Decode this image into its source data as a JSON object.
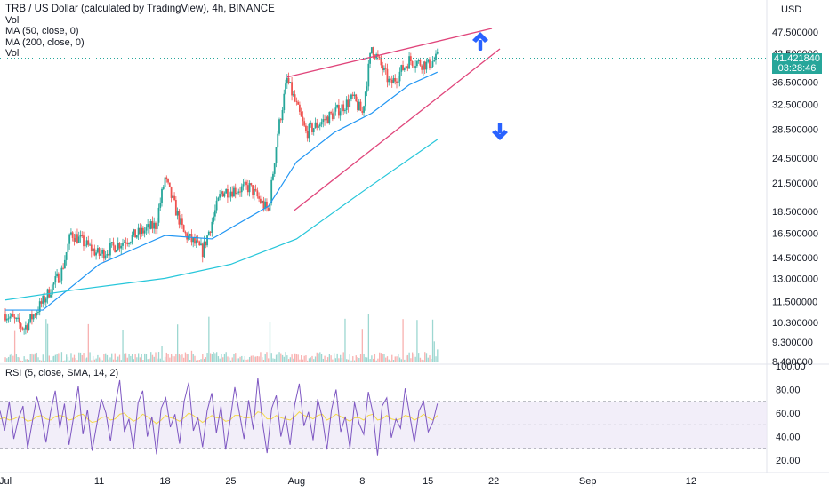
{
  "legend": {
    "title": "TRB / US Dollar (calculated by TradingView), 4h, BINANCE",
    "vol1": "Vol",
    "ma50": "MA (50, close, 0)",
    "ma200": "MA (200, close, 0)",
    "vol2": "Vol"
  },
  "rsi_legend": "RSI (5, close, SMA, 14, 2)",
  "price_scale": {
    "currency": "USD",
    "last_price": "41.421840",
    "countdown": "03:28:46"
  },
  "colors": {
    "up": "#26a69a",
    "down": "#ef5350",
    "ma50": "#2196f3",
    "ma200": "#26c6da",
    "wedge": "#e0457b",
    "arrow": "#2962ff",
    "rsi": "#7e57c2",
    "rsi_sma": "#f5d94a",
    "rsi_band": "#ede7f6"
  },
  "chart_data": [
    {
      "type": "candlestick",
      "title": "TRB / US Dollar (calculated by TradingView), 4h, BINANCE",
      "ylabel": "USD",
      "scale": "log",
      "y_ticks": [
        "47.500000",
        "42.500000",
        "36.500000",
        "32.500000",
        "28.500000",
        "24.500000",
        "21.500000",
        "18.500000",
        "16.500000",
        "14.500000",
        "13.000000",
        "11.500000",
        "10.300000",
        "9.300000",
        "8.400000"
      ],
      "x_ticks": [
        "Jul",
        "11",
        "18",
        "25",
        "Aug",
        "8",
        "15",
        "22",
        "Sep",
        "12"
      ],
      "last_price": 41.42184,
      "key_points": [
        {
          "date": "Jul 1",
          "close": 10.8
        },
        {
          "date": "Jul 3",
          "close": 10.0
        },
        {
          "date": "Jul 5",
          "close": 11.5
        },
        {
          "date": "Jul 7",
          "close": 13.5
        },
        {
          "date": "Jul 8",
          "close": 16.5
        },
        {
          "date": "Jul 11",
          "close": 14.7
        },
        {
          "date": "Jul 14",
          "close": 16.0
        },
        {
          "date": "Jul 17",
          "close": 17.2
        },
        {
          "date": "Jul 18",
          "close": 22.0
        },
        {
          "date": "Jul 20",
          "close": 16.5
        },
        {
          "date": "Jul 22",
          "close": 15.0
        },
        {
          "date": "Jul 24",
          "close": 20.5
        },
        {
          "date": "Jul 27",
          "close": 21.0
        },
        {
          "date": "Jul 29",
          "close": 18.5
        },
        {
          "date": "Jul 30",
          "close": 28.0
        },
        {
          "date": "Jul 31",
          "close": 37.0
        },
        {
          "date": "Aug 2",
          "close": 28.0
        },
        {
          "date": "Aug 5",
          "close": 31.0
        },
        {
          "date": "Aug 7",
          "close": 33.5
        },
        {
          "date": "Aug 8",
          "close": 31.0
        },
        {
          "date": "Aug 9",
          "close": 44.0
        },
        {
          "date": "Aug 11",
          "close": 36.0
        },
        {
          "date": "Aug 13",
          "close": 41.0
        },
        {
          "date": "Aug 15",
          "close": 40.0
        },
        {
          "date": "Aug 16",
          "close": 41.42
        }
      ],
      "ma50": [
        {
          "date": "Jul 1",
          "value": 11.0
        },
        {
          "date": "Jul 5",
          "value": 11.0
        },
        {
          "date": "Jul 11",
          "value": 14.0
        },
        {
          "date": "Jul 18",
          "value": 16.3
        },
        {
          "date": "Jul 23",
          "value": 16.0
        },
        {
          "date": "Jul 29",
          "value": 19.0
        },
        {
          "date": "Aug 1",
          "value": 24.0
        },
        {
          "date": "Aug 5",
          "value": 28.0
        },
        {
          "date": "Aug 9",
          "value": 31.0
        },
        {
          "date": "Aug 13",
          "value": 36.0
        },
        {
          "date": "Aug 16",
          "value": 38.5
        }
      ],
      "ma200": [
        {
          "date": "Jul 1",
          "value": 11.6
        },
        {
          "date": "Jul 8",
          "value": 12.2
        },
        {
          "date": "Jul 18",
          "value": 13.0
        },
        {
          "date": "Jul 25",
          "value": 14.0
        },
        {
          "date": "Aug 1",
          "value": 16.0
        },
        {
          "date": "Aug 8",
          "value": 20.5
        },
        {
          "date": "Aug 16",
          "value": 27.0
        }
      ]
    },
    {
      "type": "line",
      "title": "RSI (5, close, SMA, 14, 2)",
      "y_ticks": [
        "100.00",
        "80.00",
        "60.00",
        "40.00",
        "20.00"
      ],
      "bands": [
        70,
        50,
        30
      ],
      "ylim": [
        14,
        100
      ],
      "series": [
        {
          "name": "RSI",
          "values": [
            62,
            45,
            70,
            38,
            55,
            66,
            30,
            52,
            74,
            58,
            35,
            61,
            79,
            47,
            68,
            33,
            57,
            83,
            42,
            63,
            28,
            50,
            72,
            60,
            36,
            66,
            88,
            44,
            55,
            30,
            69,
            79,
            40,
            57,
            25,
            64,
            73,
            48,
            59,
            34,
            70,
            86,
            45,
            56,
            31,
            62,
            77,
            43,
            66,
            29,
            54,
            82,
            60,
            38,
            71,
            46,
            90,
            52,
            26,
            64,
            75,
            40,
            58,
            33,
            67,
            85,
            49,
            61,
            37,
            72,
            56,
            29,
            63,
            80,
            44,
            57,
            30,
            69,
            51,
            42,
            78,
            60,
            24,
            66,
            73,
            39,
            55,
            47,
            81,
            58,
            35,
            62,
            70,
            44,
            52,
            68
          ]
        },
        {
          "name": "SMA",
          "values": [
            55,
            56,
            54,
            55,
            57,
            56,
            53,
            54,
            57,
            58,
            55,
            54,
            57,
            58,
            57,
            54,
            55,
            58,
            59,
            55,
            52,
            53,
            56,
            57,
            54,
            55,
            59,
            60,
            56,
            53,
            55,
            59,
            57,
            54,
            51,
            54,
            58,
            56,
            55,
            53,
            56,
            60,
            58,
            55,
            52,
            55,
            58,
            56,
            56,
            53,
            54,
            58,
            58,
            56,
            56,
            57,
            61,
            60,
            55,
            55,
            58,
            56,
            55,
            54,
            57,
            61,
            58,
            57,
            55,
            58,
            59,
            54,
            56,
            59,
            57,
            55,
            53,
            56,
            56,
            54,
            58,
            59,
            54,
            55,
            58,
            55,
            54,
            55,
            58,
            57,
            54,
            56,
            59,
            56,
            54,
            58
          ]
        }
      ]
    }
  ]
}
